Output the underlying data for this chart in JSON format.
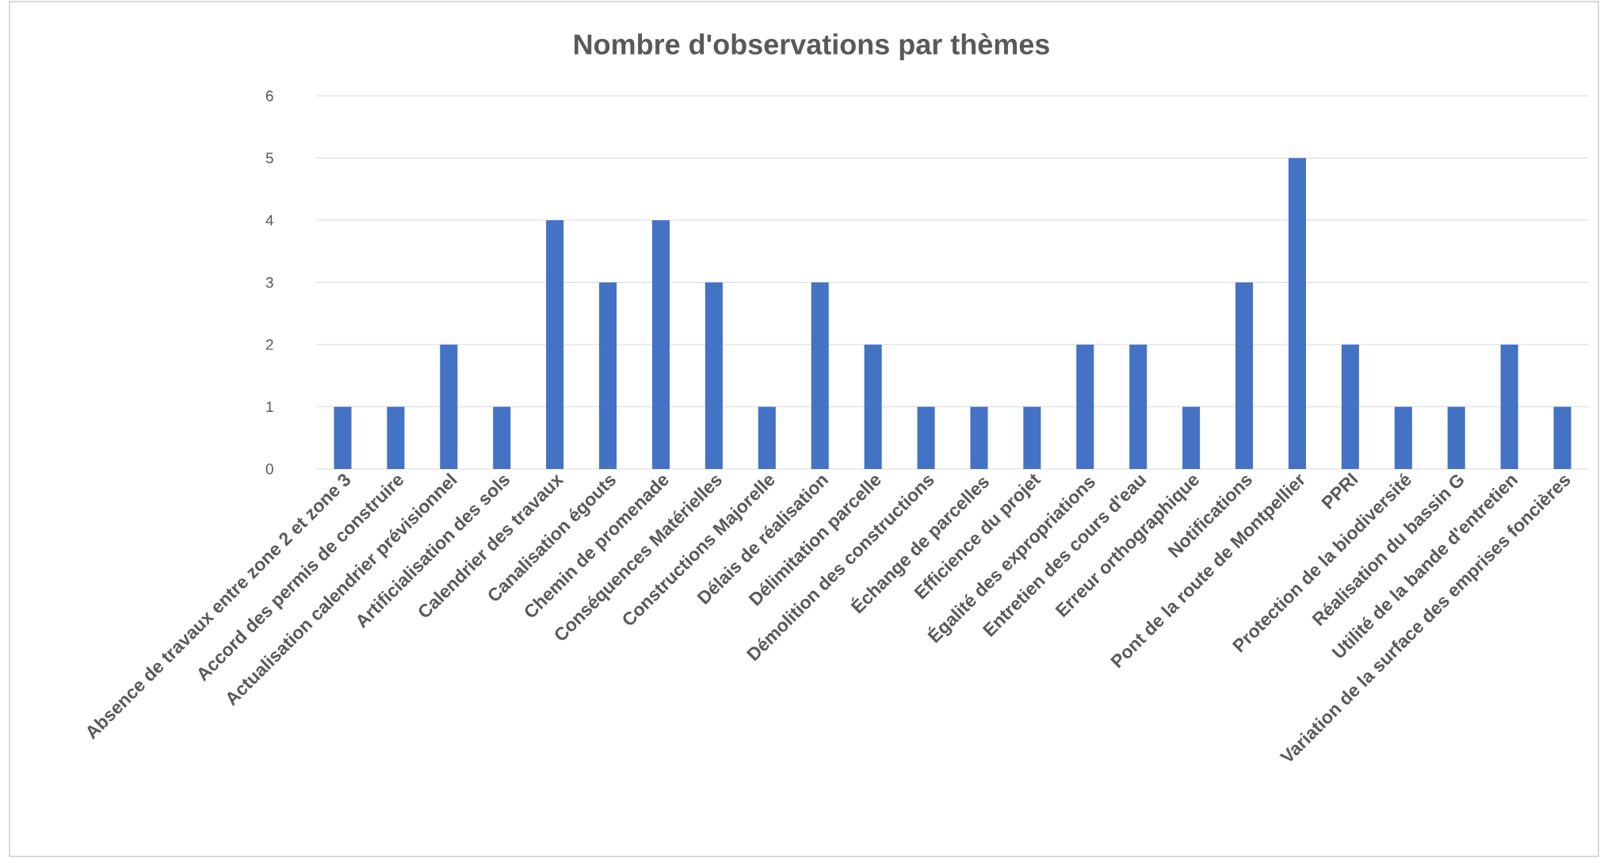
{
  "chart_data": {
    "type": "bar",
    "title": "Nombre d'observations par thèmes",
    "categories": [
      "Absence de travaux entre zone 2 et zone 3",
      "Accord des permis de construire",
      "Actualisation calendrier prévisionnel",
      "Artificialisation des sols",
      "Calendrier des travaux",
      "Canalisation égouts",
      "Chemin de promenade",
      "Conséquences Matérielles",
      "Constructions Majorelle",
      "Délais de réalisation",
      "Délimitation parcelle",
      "Démolition des constructions",
      "Échange de parcelles",
      "Efficience du projet",
      "Égalité des expropriations",
      "Entretien des cours d'eau",
      "Erreur orthographique",
      "Notifications",
      "Pont de la route de Montpellier",
      "PPRI",
      "Protection de la biodiversité",
      "Réalisation du bassin G",
      "Utilité de la bande d'entretien",
      "Variation de la surface des emprises foncières"
    ],
    "values": [
      1,
      1,
      2,
      1,
      4,
      3,
      4,
      3,
      1,
      3,
      2,
      1,
      1,
      1,
      2,
      2,
      1,
      3,
      5,
      2,
      1,
      1,
      2,
      1
    ],
    "color": "#4472c4",
    "ylim": [
      0,
      6
    ],
    "yticks": [
      0,
      1,
      2,
      3,
      4,
      5,
      6
    ],
    "grid": "y"
  }
}
